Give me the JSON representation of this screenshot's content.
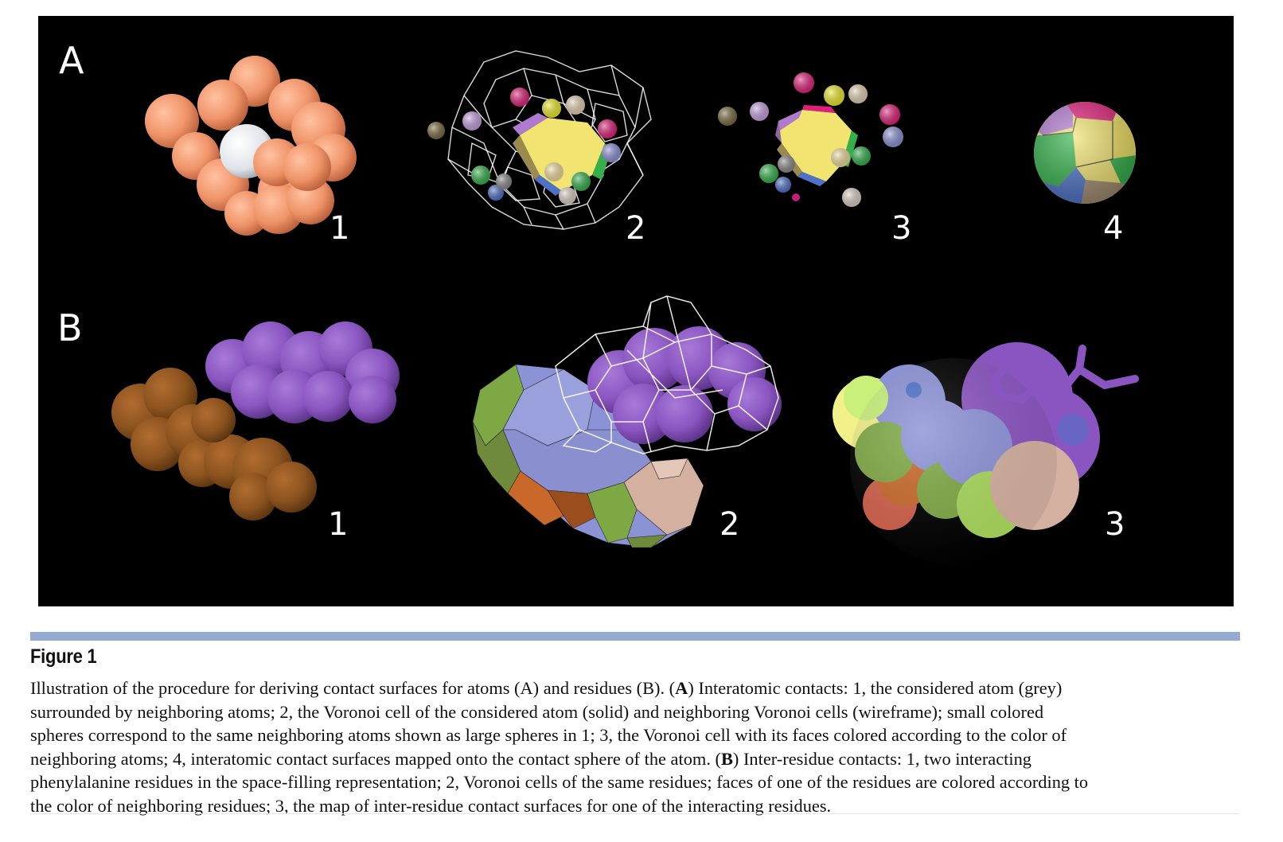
{
  "figure": {
    "panel_a_label": "A",
    "panel_b_label": "B",
    "panel_a_numbers": [
      "1",
      "2",
      "3",
      "4"
    ],
    "panel_b_numbers": [
      "1",
      "2",
      "3"
    ],
    "colors": {
      "background": "#000000",
      "salmon_atom": "#f0946a",
      "grey_atom": "#e6e8ec",
      "purple_residue": "#8a55c0",
      "brown_residue": "#8c531f",
      "periwinkle": "#8c92d6",
      "olive_green": "#7ea844",
      "tan": "#d4b0a0",
      "yellow": "#f2e470",
      "magenta": "#e0207a",
      "green": "#33b04a",
      "blue": "#4e72c8",
      "orange": "#c96a2a",
      "wire": "#ffffff",
      "rule": "#94aad1"
    }
  },
  "caption": {
    "title": "Figure 1",
    "line1_a": "Illustration of the procedure for deriving contact surfaces for atoms (A) and residues (B). (",
    "line1_bold": "A",
    "line1_b": ") Interatomic contacts: 1, the considered atom (grey)",
    "line2": "surrounded by neighboring atoms; 2, the Voronoi cell of the considered atom (solid) and neighboring Voronoi cells (wireframe); small colored",
    "line3": "spheres correspond to the same neighboring atoms shown as large spheres in 1; 3, the Voronoi cell with its faces colored according to the color of",
    "line4_a": "neighboring atoms; 4, interatomic contact surfaces mapped onto the contact sphere of the atom. (",
    "line4_bold": "B",
    "line4_b": ") Inter-residue contacts: 1, two interacting",
    "line5": "phenylalanine residues in the space-filling representation; 2, Voronoi cells of the same residues; faces of one of the residues are colored according to",
    "line6": "the color of neighboring residues; 3, the map of inter-residue contact surfaces for one of the interacting residues."
  }
}
